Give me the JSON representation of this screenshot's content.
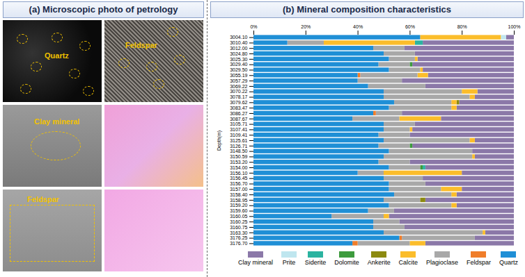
{
  "panel_a": {
    "title": "(a) Microscopic photo of petrology",
    "labels": [
      "Quartz",
      "Feldspar",
      "Clay mineral",
      "Feldspar"
    ]
  },
  "chart_data": {
    "type": "bar",
    "orientation": "horizontal",
    "stacked": true,
    "title": "(b) Mineral composition characteristics",
    "y_label": "Depth(m)",
    "categories": [
      "3004.10",
      "3010.40",
      "3012.00",
      "3024.80",
      "3025.30",
      "3029.40",
      "3029.50",
      "3055.19",
      "3057.29",
      "3069.22",
      "3070.22",
      "3078.17",
      "3079.62",
      "3083.47",
      "3086.27",
      "3087.67",
      "3105.71",
      "3107.41",
      "3109.41",
      "3125.61",
      "3126.71",
      "3148.50",
      "3150.59",
      "3153.20",
      "3154.00",
      "3156.10",
      "3156.45",
      "3156.70",
      "3157.00",
      "3158.40",
      "3158.95",
      "3159.20",
      "3159.60",
      "3160.05",
      "3160.25",
      "3160.75",
      "3163.30",
      "3176.25",
      "3176.70"
    ],
    "xlim": [
      0,
      100
    ],
    "xticks": [
      {
        "value": 0,
        "label": "0%"
      },
      {
        "value": 20,
        "label": "20%"
      },
      {
        "value": 40,
        "label": "40%"
      },
      {
        "value": 60,
        "label": "60%"
      },
      {
        "value": 80,
        "label": "80%"
      },
      {
        "value": 100,
        "label": "100%"
      }
    ],
    "legend": "bottom",
    "series": [
      {
        "name": "Clay mineral",
        "color": "#8b78a8",
        "values": [
          3,
          35,
          42,
          38,
          37,
          39,
          35,
          33,
          43,
          34,
          14,
          15,
          21,
          22,
          43,
          28,
          38,
          39,
          40,
          15,
          39,
          16,
          15,
          40,
          34,
          20,
          35,
          34,
          20,
          22,
          34,
          22,
          46,
          48,
          44,
          42,
          11,
          15,
          34
        ]
      },
      {
        "name": "Prite",
        "color": "#bfe6ef",
        "values": [
          2,
          0,
          0,
          0,
          0,
          0,
          0,
          0,
          0,
          0,
          0,
          0,
          0,
          0,
          0,
          0,
          0,
          0,
          0,
          0,
          0,
          0,
          0,
          0,
          0,
          0,
          0,
          0,
          0,
          0,
          0,
          0,
          0,
          0,
          0,
          0,
          0,
          0,
          0
        ]
      },
      {
        "name": "Siderite",
        "color": "#2bb3a0",
        "values": [
          0,
          3,
          0,
          0,
          0,
          0,
          0,
          0,
          0,
          0,
          0,
          0,
          0,
          0,
          0,
          0,
          0,
          0,
          0,
          0,
          0,
          0,
          0,
          0,
          1,
          0,
          0,
          0,
          0,
          0,
          0,
          0,
          0,
          0,
          0,
          0,
          0,
          0,
          0
        ]
      },
      {
        "name": "Dolomite",
        "color": "#3d9b3d",
        "values": [
          0,
          0,
          0,
          0,
          0,
          1,
          0,
          0,
          0,
          0,
          0,
          0,
          0,
          0,
          0,
          0,
          0,
          0,
          0,
          0,
          1,
          0,
          0,
          0,
          1,
          0,
          0,
          0,
          0,
          0,
          0,
          0,
          0,
          0,
          0,
          0,
          0,
          0,
          0
        ]
      },
      {
        "name": "Ankerite",
        "color": "#8c8a10",
        "values": [
          0,
          0,
          0,
          0,
          0,
          0,
          0,
          0,
          0,
          0,
          0,
          0,
          1,
          0,
          0,
          0,
          0,
          0,
          0,
          0,
          0,
          0,
          0,
          0,
          0,
          0,
          0,
          0,
          0,
          0,
          2,
          0,
          0,
          0,
          0,
          0,
          0,
          0,
          0
        ]
      },
      {
        "name": "Calcite",
        "color": "#fbbd2b",
        "values": [
          31,
          35,
          0,
          0,
          1,
          0,
          1,
          4,
          0,
          0,
          6,
          2,
          2,
          2,
          0,
          16,
          0,
          1,
          0,
          2,
          0,
          0,
          1,
          0,
          0,
          30,
          0,
          0,
          8,
          2,
          0,
          2,
          0,
          2,
          0,
          0,
          1,
          0,
          6
        ]
      },
      {
        "name": "Plagioclase",
        "color": "#a8a8a8",
        "values": [
          0,
          14,
          12,
          12,
          10,
          12,
          12,
          22,
          17,
          22,
          30,
          33,
          22,
          24,
          10,
          18,
          12,
          10,
          12,
          33,
          12,
          32,
          34,
          12,
          12,
          10,
          15,
          14,
          20,
          22,
          14,
          24,
          10,
          20,
          10,
          12,
          38,
          28,
          20
        ]
      },
      {
        "name": "Feldspar",
        "color": "#f07d2a",
        "values": [
          0,
          0,
          0,
          0,
          0,
          0,
          0,
          1,
          0,
          0,
          0,
          0,
          0,
          0,
          1,
          0,
          0,
          0,
          0,
          0,
          0,
          0,
          0,
          0,
          0,
          0,
          0,
          0,
          0,
          0,
          0,
          0,
          0,
          0,
          0,
          0,
          0,
          1,
          2
        ]
      },
      {
        "name": "Quartz",
        "color": "#1f8fd6",
        "values": [
          64,
          13,
          46,
          50,
          52,
          48,
          52,
          40,
          40,
          44,
          50,
          50,
          54,
          52,
          46,
          38,
          50,
          50,
          48,
          50,
          48,
          52,
          50,
          48,
          52,
          40,
          50,
          52,
          52,
          54,
          50,
          52,
          44,
          30,
          46,
          46,
          50,
          56,
          38
        ]
      }
    ]
  }
}
